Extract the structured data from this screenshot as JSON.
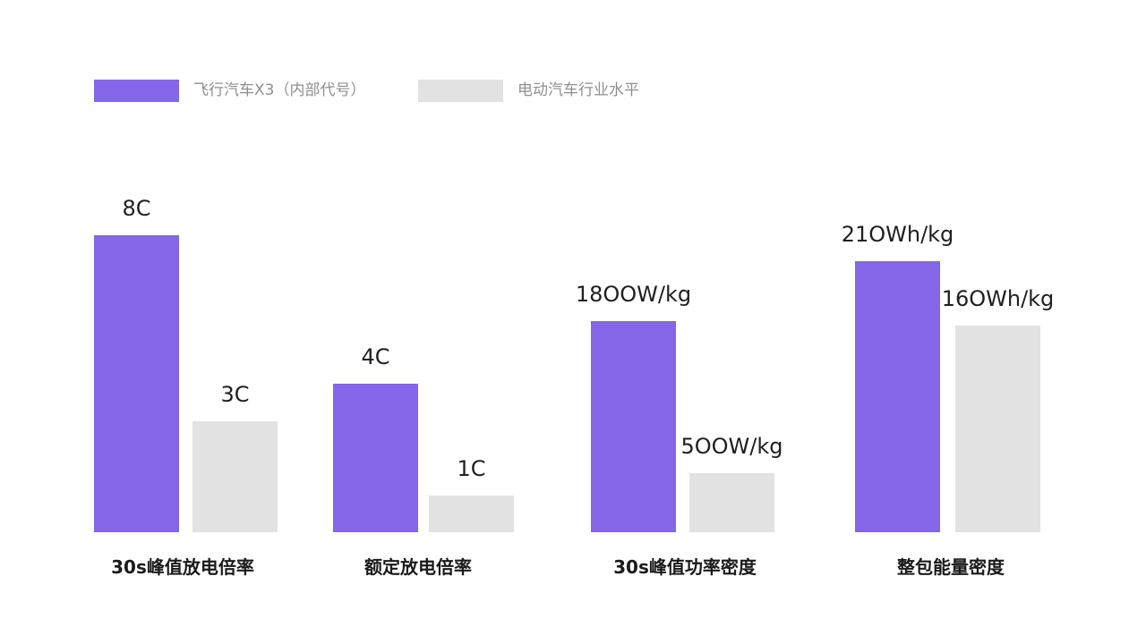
{
  "colors": {
    "primary": "#8466e8",
    "secondary": "#e2e2e2"
  },
  "legend": [
    {
      "label": "飞行汽车X3（内部代号）",
      "color": "#8466e8"
    },
    {
      "label": "电动汽车行业水平",
      "color": "#e2e2e2"
    }
  ],
  "chart_data": {
    "type": "bar",
    "legend_position": "top-left",
    "grid": false,
    "categories": [
      "30s峰值放电倍率",
      "额定放电倍率",
      "30s峰值功率密度",
      "整包能量密度"
    ],
    "series": [
      {
        "name": "飞行汽车X3（内部代号）",
        "color": "#8466e8",
        "values": [
          8,
          4,
          1800,
          210
        ],
        "units": [
          "C",
          "C",
          "W/kg",
          "Wh/kg"
        ],
        "labels": [
          "8C",
          "4C",
          "18OOW/kg",
          "21OWh/kg"
        ]
      },
      {
        "name": "电动汽车行业水平",
        "color": "#e2e2e2",
        "values": [
          3,
          1,
          500,
          160
        ],
        "units": [
          "C",
          "C",
          "W/kg",
          "Wh/kg"
        ],
        "labels": [
          "3C",
          "1C",
          "5OOW/kg",
          "16OWh/kg"
        ]
      }
    ]
  }
}
